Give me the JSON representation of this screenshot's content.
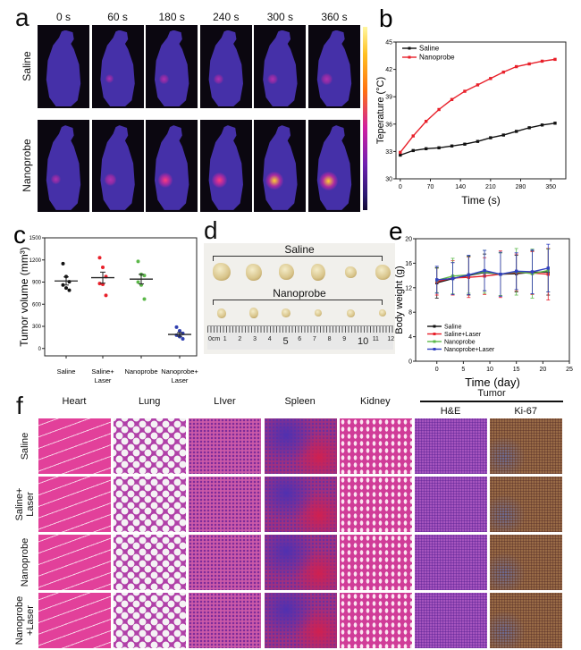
{
  "panel_a": {
    "label": "a",
    "time_labels": [
      "0 s",
      "60 s",
      "180 s",
      "240 s",
      "300 s",
      "360 s"
    ],
    "row_labels": [
      "Saline",
      "Nanoprobe"
    ],
    "heat": [
      [
        0.0,
        0.02,
        0.12,
        0.12,
        0.18,
        0.22
      ],
      [
        0.1,
        0.35,
        0.6,
        0.65,
        0.85,
        0.95
      ]
    ]
  },
  "chart_data": [
    {
      "panel": "b",
      "type": "line",
      "xlabel": "Time (s)",
      "ylabel": "Teperature (°C)",
      "xlim": [
        -10,
        385
      ],
      "ylim": [
        30,
        45
      ],
      "xticks": [
        0,
        70,
        140,
        210,
        280,
        350
      ],
      "yticks": [
        30,
        33,
        36,
        39,
        42,
        45
      ],
      "legend_position": "top-left",
      "x": [
        0,
        30,
        60,
        90,
        120,
        150,
        180,
        210,
        240,
        270,
        300,
        330,
        360
      ],
      "series": [
        {
          "name": "Saline",
          "color": "#111111",
          "values": [
            32.6,
            33.1,
            33.3,
            33.4,
            33.6,
            33.8,
            34.1,
            34.5,
            34.8,
            35.2,
            35.6,
            35.9,
            36.1
          ]
        },
        {
          "name": "Nanoprobe",
          "color": "#e8202a",
          "values": [
            32.9,
            34.7,
            36.3,
            37.6,
            38.7,
            39.6,
            40.3,
            41.0,
            41.7,
            42.3,
            42.6,
            42.9,
            43.1
          ]
        }
      ]
    },
    {
      "panel": "c",
      "type": "scatter",
      "xlabel": "",
      "ylabel": "Tumor volume (mm³)",
      "ylim": [
        -100,
        1500
      ],
      "yticks": [
        0,
        300,
        600,
        900,
        1200,
        1500
      ],
      "categories": [
        "Saline",
        "Saline+\nLaser",
        "Nanoprobe",
        "Nanoprobe+\nLaser"
      ],
      "series": [
        {
          "name": "Saline",
          "color": "#111111",
          "mean": 915,
          "sem": 55,
          "points": [
            1150,
            975,
            905,
            860,
            820,
            790
          ]
        },
        {
          "name": "Saline+Laser",
          "color": "#e8202a",
          "mean": 960,
          "sem": 75,
          "points": [
            1230,
            1100,
            975,
            880,
            870,
            720
          ]
        },
        {
          "name": "Nanoprobe",
          "color": "#5cb84a",
          "mean": 940,
          "sem": 65,
          "points": [
            1180,
            1005,
            990,
            900,
            860,
            670
          ]
        },
        {
          "name": "Nanoprobe+Laser",
          "color": "#3040b0",
          "mean": 190,
          "sem": 25,
          "points": [
            290,
            240,
            205,
            180,
            160,
            130
          ]
        }
      ]
    },
    {
      "panel": "e",
      "type": "line",
      "xlabel": "Time (day)",
      "ylabel": "Body weight (g)",
      "xlim": [
        -4,
        25
      ],
      "ylim": [
        0,
        20
      ],
      "xticks": [
        0,
        5,
        10,
        15,
        20,
        25
      ],
      "yticks": [
        0,
        4,
        8,
        12,
        16,
        20
      ],
      "legend_position": "bottom-left",
      "x": [
        0,
        3,
        6,
        9,
        12,
        15,
        18,
        21
      ],
      "series": [
        {
          "name": "Saline",
          "color": "#111111",
          "values": [
            12.8,
            13.5,
            14.0,
            14.5,
            14.2,
            14.3,
            14.5,
            14.6
          ],
          "error": [
            2.5,
            2.6,
            3.2,
            3.0,
            3.5,
            3.0,
            3.5,
            3.8
          ]
        },
        {
          "name": "Saline+Laser",
          "color": "#e8202a",
          "values": [
            13.0,
            13.6,
            13.7,
            13.9,
            14.2,
            14.5,
            14.4,
            14.2
          ],
          "error": [
            2.2,
            2.8,
            3.3,
            3.0,
            3.8,
            3.0,
            3.5,
            4.2
          ]
        },
        {
          "name": "Nanoprobe",
          "color": "#5cb84a",
          "values": [
            13.2,
            13.9,
            14.1,
            14.6,
            14.2,
            14.6,
            14.3,
            14.8
          ],
          "error": [
            2.0,
            2.9,
            3.0,
            3.5,
            3.5,
            3.8,
            4.0,
            3.5
          ]
        },
        {
          "name": "Nanoprobe+Laser",
          "color": "#3040c0",
          "values": [
            13.3,
            13.5,
            14.1,
            14.8,
            14.2,
            14.7,
            14.6,
            15.2
          ],
          "error": [
            2.2,
            2.6,
            3.2,
            3.3,
            3.6,
            3.0,
            3.6,
            3.9
          ]
        }
      ]
    }
  ],
  "panel_d": {
    "label": "d",
    "group_labels": [
      "Saline",
      "Nanoprobe"
    ],
    "ruler_labels": [
      "0cm",
      "1",
      "2",
      "3",
      "4",
      "5",
      "6",
      "7",
      "8",
      "9",
      "10",
      "11",
      "12"
    ]
  },
  "panel_f": {
    "label": "f",
    "tumor_label": "Tumor",
    "columns": [
      "Heart",
      "Lung",
      "LIver",
      "Spleen",
      "Kidney",
      "H&E",
      "Ki-67"
    ],
    "row_labels": [
      "Saline",
      "Saline+\nLaser",
      "Nanoprobe",
      "Nanoprobe\n+Laser"
    ]
  }
}
